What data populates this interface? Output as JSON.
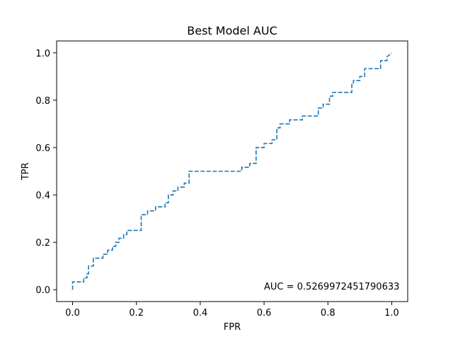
{
  "chart_data": {
    "type": "line",
    "title": "Best Model AUC",
    "xlabel": "FPR",
    "ylabel": "TPR",
    "xlim": [
      -0.05,
      1.05
    ],
    "ylim": [
      -0.05,
      1.05
    ],
    "xticks": [
      0.0,
      0.2,
      0.4,
      0.6,
      0.8,
      1.0
    ],
    "xtick_labels": [
      "0.0",
      "0.2",
      "0.4",
      "0.6",
      "0.8",
      "1.0"
    ],
    "yticks": [
      0.0,
      0.2,
      0.4,
      0.6,
      0.8,
      1.0
    ],
    "ytick_labels": [
      "0.0",
      "0.2",
      "0.4",
      "0.6",
      "0.8",
      "1.0"
    ],
    "grid": false,
    "line_style": "dashed step",
    "color": "#1f77b4",
    "annotation": "AUC = 0.5269972451790633",
    "series": [
      {
        "x": [
          0.0,
          0.0,
          0.01,
          0.01,
          0.035,
          0.035,
          0.045,
          0.045,
          0.05,
          0.05,
          0.065,
          0.065,
          0.095,
          0.095,
          0.11,
          0.11,
          0.125,
          0.125,
          0.135,
          0.135,
          0.145,
          0.145,
          0.16,
          0.16,
          0.17,
          0.17,
          0.215,
          0.215,
          0.235,
          0.235,
          0.26,
          0.26,
          0.29,
          0.29,
          0.3,
          0.3,
          0.315,
          0.315,
          0.33,
          0.33,
          0.35,
          0.35,
          0.365,
          0.365,
          0.53,
          0.53,
          0.555,
          0.555,
          0.575,
          0.575,
          0.6,
          0.6,
          0.625,
          0.625,
          0.64,
          0.64,
          0.65,
          0.65,
          0.68,
          0.68,
          0.72,
          0.72,
          0.77,
          0.77,
          0.785,
          0.785,
          0.805,
          0.805,
          0.815,
          0.815,
          0.875,
          0.875,
          0.88,
          0.88,
          0.9,
          0.9,
          0.915,
          0.915,
          0.965,
          0.965,
          0.985,
          0.985,
          1.0
        ],
        "y": [
          0.0,
          0.033,
          0.033,
          0.033,
          0.033,
          0.05,
          0.05,
          0.067,
          0.067,
          0.1,
          0.1,
          0.133,
          0.133,
          0.15,
          0.15,
          0.167,
          0.167,
          0.183,
          0.183,
          0.2,
          0.2,
          0.217,
          0.217,
          0.233,
          0.233,
          0.25,
          0.25,
          0.317,
          0.317,
          0.333,
          0.333,
          0.35,
          0.35,
          0.367,
          0.367,
          0.4,
          0.4,
          0.417,
          0.417,
          0.433,
          0.433,
          0.45,
          0.45,
          0.5,
          0.5,
          0.517,
          0.517,
          0.533,
          0.533,
          0.6,
          0.6,
          0.617,
          0.617,
          0.633,
          0.633,
          0.683,
          0.683,
          0.7,
          0.7,
          0.717,
          0.717,
          0.733,
          0.733,
          0.767,
          0.767,
          0.783,
          0.783,
          0.817,
          0.817,
          0.833,
          0.833,
          0.867,
          0.867,
          0.883,
          0.883,
          0.9,
          0.9,
          0.933,
          0.933,
          0.967,
          0.967,
          0.983,
          1.0
        ]
      }
    ]
  }
}
